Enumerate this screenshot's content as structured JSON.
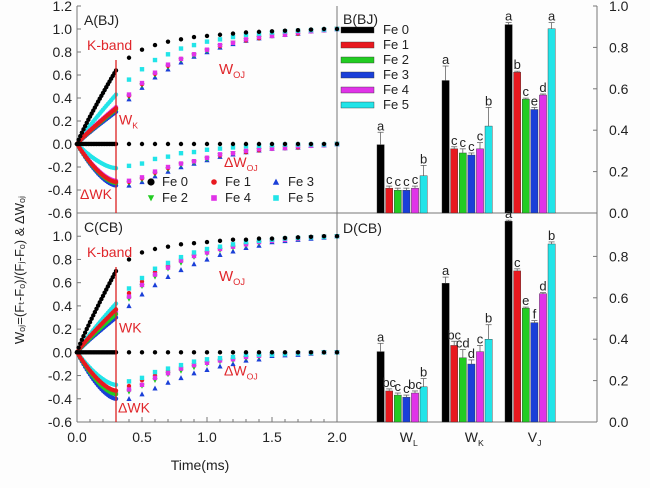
{
  "figure": {
    "ylabel": "Wₒⱼ=(Fₜ-Fₒ)/(Fⱼ-Fₒ) & ΔWₒⱼ",
    "xlabel": "Time(ms)"
  },
  "series_styles": [
    {
      "name": "Fe 0",
      "color": "#000000",
      "marker": "circle"
    },
    {
      "name": "Fe 1",
      "color": "#e8191f",
      "marker": "circle"
    },
    {
      "name": "Fe 2",
      "color": "#22cc22",
      "marker": "triangle-down"
    },
    {
      "name": "Fe 3",
      "color": "#1a3fd8",
      "marker": "triangle-up"
    },
    {
      "name": "Fe 4",
      "color": "#e033e8",
      "marker": "square"
    },
    {
      "name": "Fe 5",
      "color": "#22e4e8",
      "marker": "square"
    }
  ],
  "chart_data": [
    {
      "id": "A",
      "type": "scatter",
      "title": "A(BJ)",
      "xlabel": "Time(ms)",
      "ylabel": "W_OJ=(F_t-F_O)/(F_J-F_O) & ΔW_OJ",
      "xlim": [
        0,
        2.0
      ],
      "ylim": [
        -0.6,
        1.2
      ],
      "xticks": [
        "0.0",
        "0.5",
        "1.0",
        "1.5",
        "2.0"
      ],
      "yticks": [
        "-0.6",
        "-0.4",
        "-0.2",
        "0.0",
        "0.2",
        "0.4",
        "0.6",
        "0.8",
        "1.0",
        "1.2"
      ],
      "annotations": [
        "K-band",
        "W_OJ",
        "W_K",
        "ΔW_OJ",
        "ΔWK"
      ],
      "kband_x": 0.3,
      "legend": "bottom-right",
      "legend_labels": [
        "Fe 0",
        "Fe 1",
        "Fe 3",
        "Fe 2",
        "Fe 4",
        "Fe 5"
      ],
      "W_K_at_0_3": {
        "Fe 0": 0.64,
        "Fe 1": 0.31,
        "Fe 2": 0.3,
        "Fe 3": 0.28,
        "Fe 4": 0.32,
        "Fe 5": 0.43
      },
      "dWK_at_0_3": {
        "Fe 0": 0.0,
        "Fe 1": -0.33,
        "Fe 2": -0.34,
        "Fe 3": -0.36,
        "Fe 4": -0.32,
        "Fe 5": -0.21
      },
      "x": [
        0.4,
        0.5,
        0.6,
        0.7,
        0.8,
        0.9,
        1.0,
        1.1,
        1.2,
        1.3,
        1.4,
        1.5,
        1.6,
        1.7,
        1.8,
        1.9,
        2.0
      ],
      "W_OJ": {
        "Fe 0": [
          0.75,
          0.82,
          0.86,
          0.89,
          0.91,
          0.93,
          0.94,
          0.95,
          0.96,
          0.97,
          0.975,
          0.98,
          0.985,
          0.99,
          0.995,
          1.0,
          1.0
        ],
        "Fe 1": [
          0.42,
          0.52,
          0.61,
          0.68,
          0.74,
          0.78,
          0.82,
          0.85,
          0.88,
          0.9,
          0.92,
          0.94,
          0.95,
          0.96,
          0.98,
          0.99,
          1.0
        ],
        "Fe 2": [
          0.41,
          0.51,
          0.6,
          0.67,
          0.73,
          0.77,
          0.81,
          0.85,
          0.88,
          0.9,
          0.92,
          0.94,
          0.95,
          0.96,
          0.98,
          0.99,
          1.0
        ],
        "Fe 3": [
          0.39,
          0.49,
          0.58,
          0.65,
          0.71,
          0.76,
          0.8,
          0.84,
          0.87,
          0.9,
          0.92,
          0.94,
          0.95,
          0.96,
          0.98,
          0.99,
          1.0
        ],
        "Fe 4": [
          0.43,
          0.53,
          0.62,
          0.69,
          0.74,
          0.78,
          0.82,
          0.86,
          0.88,
          0.91,
          0.93,
          0.94,
          0.95,
          0.97,
          0.98,
          0.99,
          1.0
        ],
        "Fe 5": [
          0.56,
          0.65,
          0.73,
          0.78,
          0.83,
          0.86,
          0.89,
          0.91,
          0.93,
          0.95,
          0.96,
          0.97,
          0.98,
          0.985,
          0.99,
          0.995,
          1.0
        ]
      },
      "dW_OJ": {
        "Fe 0": [
          0,
          0,
          0,
          0,
          0,
          0,
          0,
          0,
          0,
          0,
          0,
          0,
          0,
          0,
          0,
          0,
          0
        ],
        "Fe 1": [
          -0.33,
          -0.3,
          -0.25,
          -0.21,
          -0.17,
          -0.15,
          -0.12,
          -0.1,
          -0.08,
          -0.07,
          -0.055,
          -0.04,
          -0.035,
          -0.03,
          -0.015,
          -0.01,
          0
        ],
        "Fe 2": [
          -0.34,
          -0.31,
          -0.26,
          -0.22,
          -0.18,
          -0.16,
          -0.13,
          -0.1,
          -0.08,
          -0.07,
          -0.055,
          -0.04,
          -0.035,
          -0.03,
          -0.015,
          -0.01,
          0
        ],
        "Fe 3": [
          -0.36,
          -0.33,
          -0.28,
          -0.24,
          -0.2,
          -0.17,
          -0.14,
          -0.11,
          -0.09,
          -0.07,
          -0.055,
          -0.04,
          -0.035,
          -0.03,
          -0.015,
          -0.01,
          0
        ],
        "Fe 4": [
          -0.32,
          -0.29,
          -0.24,
          -0.2,
          -0.17,
          -0.15,
          -0.12,
          -0.09,
          -0.08,
          -0.06,
          -0.045,
          -0.04,
          -0.035,
          -0.02,
          -0.015,
          -0.01,
          0
        ],
        "Fe 5": [
          -0.19,
          -0.17,
          -0.13,
          -0.11,
          -0.08,
          -0.07,
          -0.05,
          -0.04,
          -0.03,
          -0.02,
          -0.015,
          -0.01,
          -0.005,
          -0.005,
          -0.005,
          -0.005,
          0
        ]
      }
    },
    {
      "id": "C",
      "type": "scatter",
      "title": "C(CB)",
      "xlabel": "Time(ms)",
      "xlim": [
        0,
        2.0
      ],
      "ylim": [
        -0.6,
        1.2
      ],
      "xticks": [
        "0.0",
        "0.5",
        "1.0",
        "1.5",
        "2.0"
      ],
      "yticks": [
        "-0.6",
        "-0.4",
        "-0.2",
        "0.0",
        "0.2",
        "0.4",
        "0.6",
        "0.8",
        "1.0"
      ],
      "annotations": [
        "K-band",
        "W_OJ",
        "WK",
        "ΔW_OJ",
        "ΔWK"
      ],
      "kband_x": 0.3,
      "W_K_at_0_3": {
        "Fe 0": 0.7,
        "Fe 1": 0.37,
        "Fe 2": 0.33,
        "Fe 3": 0.3,
        "Fe 4": 0.35,
        "Fe 5": 0.42
      },
      "dWK_at_0_3": {
        "Fe 0": 0.0,
        "Fe 1": -0.33,
        "Fe 2": -0.36,
        "Fe 3": -0.4,
        "Fe 4": -0.35,
        "Fe 5": -0.28
      },
      "x": [
        0.4,
        0.5,
        0.6,
        0.7,
        0.8,
        0.9,
        1.0,
        1.1,
        1.2,
        1.3,
        1.4,
        1.5,
        1.6,
        1.7,
        1.8,
        1.9,
        2.0
      ],
      "W_OJ": {
        "Fe 0": [
          0.8,
          0.86,
          0.89,
          0.91,
          0.93,
          0.94,
          0.95,
          0.96,
          0.97,
          0.97,
          0.98,
          0.98,
          0.985,
          0.99,
          0.995,
          1.0,
          1.0
        ],
        "Fe 1": [
          0.51,
          0.61,
          0.69,
          0.75,
          0.8,
          0.84,
          0.87,
          0.89,
          0.91,
          0.93,
          0.95,
          0.96,
          0.97,
          0.98,
          0.99,
          0.995,
          1.0
        ],
        "Fe 2": [
          0.46,
          0.57,
          0.65,
          0.72,
          0.77,
          0.82,
          0.85,
          0.88,
          0.9,
          0.92,
          0.94,
          0.96,
          0.97,
          0.98,
          0.99,
          0.995,
          1.0
        ],
        "Fe 3": [
          0.4,
          0.5,
          0.58,
          0.65,
          0.71,
          0.76,
          0.8,
          0.84,
          0.87,
          0.9,
          0.92,
          0.95,
          0.96,
          0.97,
          0.98,
          0.99,
          1.0
        ],
        "Fe 4": [
          0.48,
          0.58,
          0.67,
          0.73,
          0.79,
          0.83,
          0.86,
          0.89,
          0.91,
          0.93,
          0.95,
          0.96,
          0.97,
          0.98,
          0.99,
          0.995,
          1.0
        ],
        "Fe 5": [
          0.55,
          0.64,
          0.72,
          0.77,
          0.82,
          0.86,
          0.89,
          0.91,
          0.93,
          0.95,
          0.96,
          0.97,
          0.98,
          0.985,
          0.99,
          0.995,
          1.0
        ]
      },
      "dW_OJ": {
        "Fe 0": [
          0,
          0,
          0,
          0,
          0,
          0,
          0,
          0,
          0,
          0,
          0,
          0,
          0,
          0,
          0,
          0,
          0
        ],
        "Fe 1": [
          -0.29,
          -0.24,
          -0.2,
          -0.16,
          -0.13,
          -0.1,
          -0.08,
          -0.07,
          -0.06,
          -0.04,
          -0.03,
          -0.02,
          -0.015,
          -0.01,
          -0.005,
          0,
          0
        ],
        "Fe 2": [
          -0.34,
          -0.29,
          -0.24,
          -0.19,
          -0.16,
          -0.13,
          -0.1,
          -0.08,
          -0.07,
          -0.05,
          -0.04,
          -0.02,
          -0.015,
          -0.01,
          -0.005,
          0,
          0
        ],
        "Fe 3": [
          -0.4,
          -0.36,
          -0.31,
          -0.26,
          -0.22,
          -0.18,
          -0.15,
          -0.12,
          -0.1,
          -0.07,
          -0.06,
          -0.03,
          -0.025,
          -0.02,
          -0.01,
          0,
          0
        ],
        "Fe 4": [
          -0.32,
          -0.28,
          -0.22,
          -0.18,
          -0.14,
          -0.11,
          -0.09,
          -0.07,
          -0.06,
          -0.04,
          -0.03,
          -0.02,
          -0.015,
          -0.01,
          -0.005,
          0,
          0
        ],
        "Fe 5": [
          -0.25,
          -0.22,
          -0.17,
          -0.14,
          -0.11,
          -0.08,
          -0.06,
          -0.05,
          -0.04,
          -0.02,
          -0.02,
          -0.02,
          -0.015,
          -0.01,
          -0.005,
          0,
          0
        ]
      }
    },
    {
      "id": "B",
      "type": "bar",
      "title": "B(BJ)",
      "categories": [
        "W_L",
        "W_K",
        "V_J"
      ],
      "ylim": [
        0,
        1.0
      ],
      "yticks": [
        "0.0",
        "0.2",
        "0.4",
        "0.6",
        "0.8",
        "1.0"
      ],
      "legend": "top-left",
      "series": [
        {
          "name": "Fe 0",
          "values": [
            0.33,
            0.64,
            0.91
          ],
          "errors": [
            0.06,
            0.07,
            0.01
          ],
          "letters": [
            "a",
            "a",
            "a"
          ]
        },
        {
          "name": "Fe 1",
          "values": [
            0.12,
            0.31,
            0.68
          ],
          "errors": [
            0.01,
            0.01,
            0.005
          ],
          "letters": [
            "c",
            "c",
            "b"
          ]
        },
        {
          "name": "Fe 2",
          "values": [
            0.11,
            0.29,
            0.55
          ],
          "errors": [
            0.01,
            0.02,
            0.005
          ],
          "letters": [
            "c",
            "c",
            "c"
          ]
        },
        {
          "name": "Fe 3",
          "values": [
            0.11,
            0.28,
            0.5
          ],
          "errors": [
            0.01,
            0.01,
            0.01
          ],
          "letters": [
            "c",
            "c",
            "e"
          ]
        },
        {
          "name": "Fe 4",
          "values": [
            0.12,
            0.31,
            0.57
          ],
          "errors": [
            0.01,
            0.03,
            0.005
          ],
          "letters": [
            "c",
            "c",
            "d"
          ]
        },
        {
          "name": "Fe 5",
          "values": [
            0.18,
            0.42,
            0.89
          ],
          "errors": [
            0.05,
            0.09,
            0.03
          ],
          "letters": [
            "b",
            "b",
            "a"
          ]
        }
      ]
    },
    {
      "id": "D",
      "type": "bar",
      "title": "D(CB)",
      "categories": [
        "W_L",
        "W_K",
        "V_J"
      ],
      "ylim": [
        0,
        1.0
      ],
      "yticks": [
        "0.0",
        "0.2",
        "0.4",
        "0.6",
        "0.8"
      ],
      "series": [
        {
          "name": "Fe 0",
          "values": [
            0.34,
            0.67,
            0.97
          ],
          "errors": [
            0.04,
            0.03,
            0.005
          ],
          "letters": [
            "a",
            "a",
            "a"
          ]
        },
        {
          "name": "Fe 1",
          "values": [
            0.15,
            0.37,
            0.73
          ],
          "errors": [
            0.01,
            0.02,
            0.01
          ],
          "letters": [
            "bc",
            "bc",
            "c"
          ]
        },
        {
          "name": "Fe 2",
          "values": [
            0.13,
            0.31,
            0.55
          ],
          "errors": [
            0.01,
            0.04,
            0.005
          ],
          "letters": [
            "c",
            "cd",
            "e"
          ]
        },
        {
          "name": "Fe 3",
          "values": [
            0.12,
            0.28,
            0.48
          ],
          "errors": [
            0.01,
            0.02,
            0.01
          ],
          "letters": [
            "c",
            "d",
            "f"
          ]
        },
        {
          "name": "Fe 4",
          "values": [
            0.14,
            0.34,
            0.62
          ],
          "errors": [
            0.01,
            0.03,
            0.005
          ],
          "letters": [
            "bc",
            "c",
            "d"
          ]
        },
        {
          "name": "Fe 5",
          "values": [
            0.17,
            0.4,
            0.86
          ],
          "errors": [
            0.04,
            0.07,
            0.01
          ],
          "letters": [
            "b",
            "b",
            "b"
          ]
        }
      ]
    }
  ]
}
